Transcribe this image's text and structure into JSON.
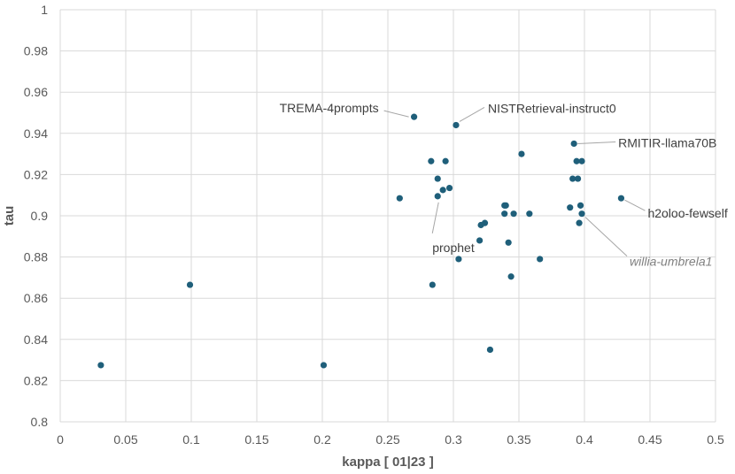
{
  "chart_data": {
    "type": "scatter",
    "xlabel": "kappa [ 01|23 ]",
    "ylabel": "tau",
    "xlim": [
      0,
      0.5
    ],
    "ylim": [
      0.8,
      1.0
    ],
    "x_ticks": [
      "0",
      "0.05",
      "0.1",
      "0.15",
      "0.2",
      "0.25",
      "0.3",
      "0.35",
      "0.4",
      "0.45",
      "0.5"
    ],
    "y_ticks": [
      "0.8",
      "0.82",
      "0.84",
      "0.86",
      "0.88",
      "0.9",
      "0.92",
      "0.94",
      "0.96",
      "0.98",
      "1"
    ],
    "grid": true,
    "marker_color": "#1f5f7a",
    "points": [
      {
        "x": 0.031,
        "y": 0.8275
      },
      {
        "x": 0.099,
        "y": 0.8665
      },
      {
        "x": 0.201,
        "y": 0.8275
      },
      {
        "x": 0.259,
        "y": 0.9085
      },
      {
        "x": 0.27,
        "y": 0.948
      },
      {
        "x": 0.283,
        "y": 0.9265
      },
      {
        "x": 0.284,
        "y": 0.8665
      },
      {
        "x": 0.288,
        "y": 0.9095
      },
      {
        "x": 0.288,
        "y": 0.918
      },
      {
        "x": 0.292,
        "y": 0.9125
      },
      {
        "x": 0.294,
        "y": 0.9265
      },
      {
        "x": 0.297,
        "y": 0.9135
      },
      {
        "x": 0.302,
        "y": 0.944
      },
      {
        "x": 0.304,
        "y": 0.879
      },
      {
        "x": 0.32,
        "y": 0.888
      },
      {
        "x": 0.321,
        "y": 0.8955
      },
      {
        "x": 0.324,
        "y": 0.8965
      },
      {
        "x": 0.328,
        "y": 0.835
      },
      {
        "x": 0.339,
        "y": 0.905
      },
      {
        "x": 0.339,
        "y": 0.901
      },
      {
        "x": 0.34,
        "y": 0.905
      },
      {
        "x": 0.342,
        "y": 0.887
      },
      {
        "x": 0.344,
        "y": 0.8705
      },
      {
        "x": 0.346,
        "y": 0.901
      },
      {
        "x": 0.352,
        "y": 0.93
      },
      {
        "x": 0.358,
        "y": 0.901
      },
      {
        "x": 0.366,
        "y": 0.879
      },
      {
        "x": 0.389,
        "y": 0.904
      },
      {
        "x": 0.391,
        "y": 0.918
      },
      {
        "x": 0.392,
        "y": 0.935
      },
      {
        "x": 0.394,
        "y": 0.9265
      },
      {
        "x": 0.395,
        "y": 0.918
      },
      {
        "x": 0.396,
        "y": 0.8965
      },
      {
        "x": 0.397,
        "y": 0.905
      },
      {
        "x": 0.398,
        "y": 0.9265
      },
      {
        "x": 0.398,
        "y": 0.901
      },
      {
        "x": 0.428,
        "y": 0.9085
      }
    ],
    "annotations": [
      {
        "text": "TREMA-4prompts",
        "x": 0.27,
        "y": 0.948,
        "italic": false
      },
      {
        "text": "NISTRetrieval-instruct0",
        "x": 0.302,
        "y": 0.944,
        "italic": false
      },
      {
        "text": "RMITIR-llama70B",
        "x": 0.392,
        "y": 0.935,
        "italic": false
      },
      {
        "text": "h2oloo-fewself",
        "x": 0.428,
        "y": 0.9085,
        "italic": false
      },
      {
        "text": "prophet",
        "x": 0.288,
        "y": 0.9095,
        "italic": false
      },
      {
        "text": "willia-umbrela1",
        "x": 0.398,
        "y": 0.901,
        "italic": true
      }
    ]
  }
}
